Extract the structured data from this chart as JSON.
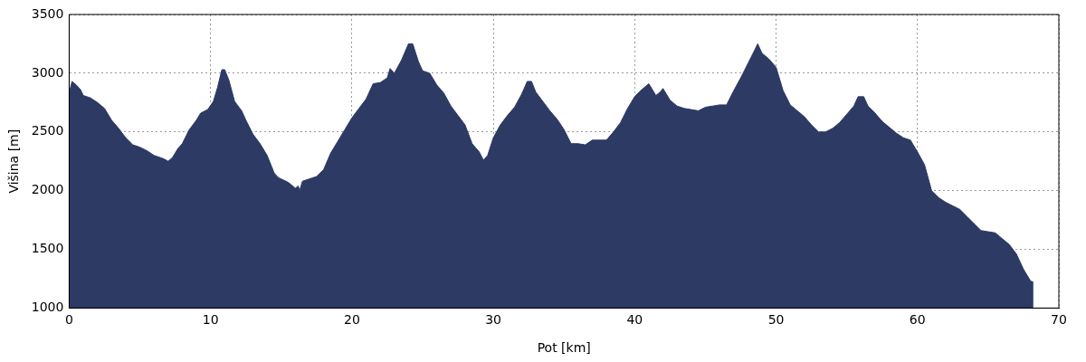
{
  "chart_data": {
    "type": "area",
    "xlabel": "Pot [km]",
    "ylabel": "Višina [m]",
    "xlim": [
      0,
      70
    ],
    "xticks": [
      0,
      10,
      20,
      30,
      40,
      50,
      60,
      70
    ],
    "ylim": [
      1000,
      3500
    ],
    "yticks": [
      1000,
      1500,
      2000,
      2500,
      3000,
      3500
    ],
    "grid": true,
    "series": [
      {
        "color": "#2c3a64",
        "x": [
          0,
          0.2,
          0.5,
          0.8,
          1,
          1.5,
          2,
          2.5,
          3,
          3.5,
          4,
          4.5,
          5,
          5.5,
          6,
          6.7,
          7,
          7.3,
          7.7,
          8,
          8.5,
          9,
          9.3,
          9.8,
          10.2,
          10.5,
          10.8,
          11,
          11.3,
          11.7,
          12.2,
          12.5,
          13,
          13.5,
          14,
          14.5,
          14.8,
          15.5,
          16,
          16.2,
          16.3,
          16.5,
          17,
          17.5,
          18,
          18.5,
          19,
          19.5,
          20,
          20.5,
          21,
          21.5,
          22,
          22.5,
          22.7,
          23,
          23.5,
          24,
          24.3,
          24.7,
          25,
          25.5,
          26,
          26.5,
          27,
          27.5,
          28,
          28.5,
          29,
          29.3,
          29.6,
          30,
          30.5,
          31,
          31.5,
          32,
          32.4,
          32.7,
          33,
          33.5,
          34,
          34.5,
          35,
          35.5,
          36,
          36.5,
          37,
          38,
          38.5,
          39,
          39.5,
          40,
          40.5,
          41,
          41.5,
          41.8,
          42,
          42.5,
          43,
          43.5,
          44,
          44.5,
          45,
          45.5,
          46,
          46.5,
          47,
          47.5,
          48,
          48.5,
          48.7,
          49,
          49.5,
          50,
          50.5,
          51,
          51.5,
          52,
          52.5,
          53,
          53.5,
          54,
          54.5,
          55,
          55.5,
          55.8,
          56.2,
          56.5,
          57,
          57.5,
          58,
          58.5,
          59,
          59.5,
          60,
          60.5,
          61,
          61.5,
          62,
          62.5,
          63,
          63.5,
          64,
          64.5,
          65,
          65.5,
          66,
          66.5,
          67,
          67.5,
          68,
          68.2
        ],
        "values": [
          2830,
          2930,
          2900,
          2860,
          2810,
          2790,
          2750,
          2700,
          2600,
          2530,
          2450,
          2390,
          2370,
          2340,
          2300,
          2270,
          2250,
          2280,
          2360,
          2400,
          2520,
          2600,
          2660,
          2690,
          2760,
          2880,
          3030,
          3030,
          2940,
          2760,
          2680,
          2600,
          2480,
          2400,
          2300,
          2150,
          2110,
          2070,
          2020,
          2040,
          2000,
          2080,
          2100,
          2120,
          2180,
          2320,
          2420,
          2520,
          2620,
          2700,
          2780,
          2910,
          2920,
          2960,
          3040,
          3000,
          3110,
          3250,
          3250,
          3100,
          3020,
          3000,
          2900,
          2830,
          2720,
          2640,
          2560,
          2400,
          2330,
          2260,
          2300,
          2450,
          2560,
          2640,
          2710,
          2820,
          2930,
          2930,
          2840,
          2760,
          2680,
          2610,
          2520,
          2400,
          2400,
          2390,
          2430,
          2430,
          2500,
          2580,
          2700,
          2800,
          2860,
          2910,
          2810,
          2840,
          2870,
          2770,
          2720,
          2700,
          2690,
          2680,
          2710,
          2720,
          2730,
          2730,
          2850,
          2960,
          3080,
          3200,
          3250,
          3170,
          3120,
          3050,
          2850,
          2730,
          2680,
          2630,
          2560,
          2500,
          2500,
          2530,
          2580,
          2650,
          2720,
          2800,
          2800,
          2720,
          2660,
          2590,
          2540,
          2490,
          2450,
          2430,
          2330,
          2220,
          2000,
          1940,
          1900,
          1870,
          1840,
          1780,
          1720,
          1660,
          1650,
          1640,
          1590,
          1540,
          1460,
          1330,
          1230,
          1220
        ]
      }
    ]
  }
}
